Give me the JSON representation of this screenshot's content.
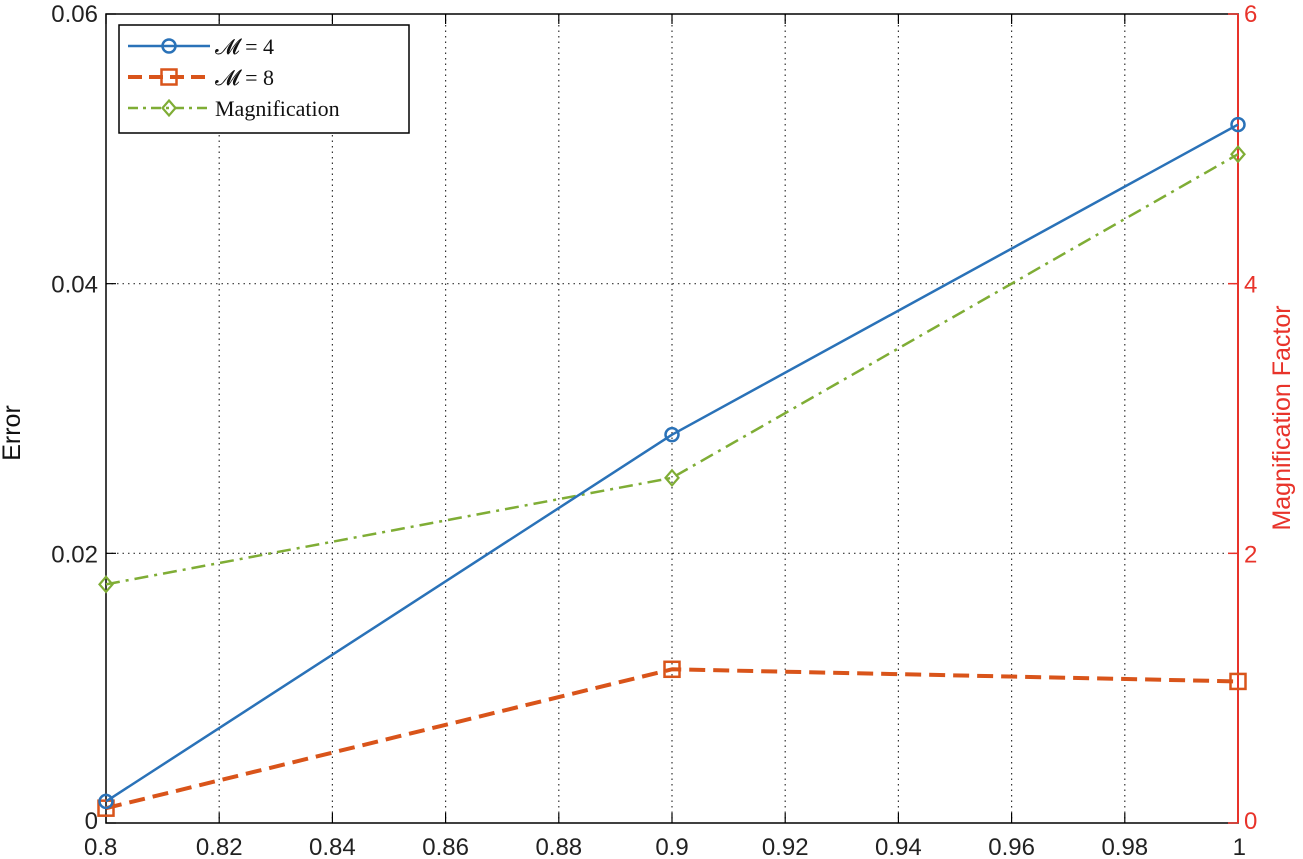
{
  "chart_data": {
    "type": "line",
    "title": "",
    "xlabel": "",
    "ylabel": "Error",
    "y2label": "Magnification Factor",
    "xlim": [
      0.8,
      1.0
    ],
    "ylim": [
      0,
      0.06
    ],
    "y2lim": [
      0,
      6
    ],
    "x_ticks": [
      "0.8",
      "0.82",
      "0.84",
      "0.86",
      "0.88",
      "0.9",
      "0.92",
      "0.94",
      "0.96",
      "0.98",
      "1"
    ],
    "y_ticks": [
      "0",
      "0.02",
      "0.04",
      "0.06"
    ],
    "y2_ticks": [
      "0",
      "2",
      "4",
      "6"
    ],
    "grid": true,
    "legend_position": "top-left",
    "colors": {
      "m4": "#2a72b8",
      "m8": "#d9541a",
      "magnification": "#7fad35",
      "right_axis": "#e8332a"
    },
    "series": [
      {
        "name": "𝓜 = 4",
        "axis": "left",
        "marker": "circle",
        "style": "solid",
        "color": "#2a72b8",
        "x": [
          0.8,
          0.9,
          1.0
        ],
        "values": [
          0.0016,
          0.0288,
          0.0518
        ]
      },
      {
        "name": "𝓜 = 8",
        "axis": "left",
        "marker": "square",
        "style": "dashed",
        "color": "#d9541a",
        "x": [
          0.8,
          0.9,
          1.0
        ],
        "values": [
          0.0011,
          0.0114,
          0.0105
        ]
      },
      {
        "name": "Magnification",
        "axis": "right",
        "marker": "diamond",
        "style": "dashdot",
        "color": "#7fad35",
        "x": [
          0.8,
          0.9,
          1.0
        ],
        "values": [
          1.77,
          2.56,
          4.96
        ]
      }
    ]
  }
}
